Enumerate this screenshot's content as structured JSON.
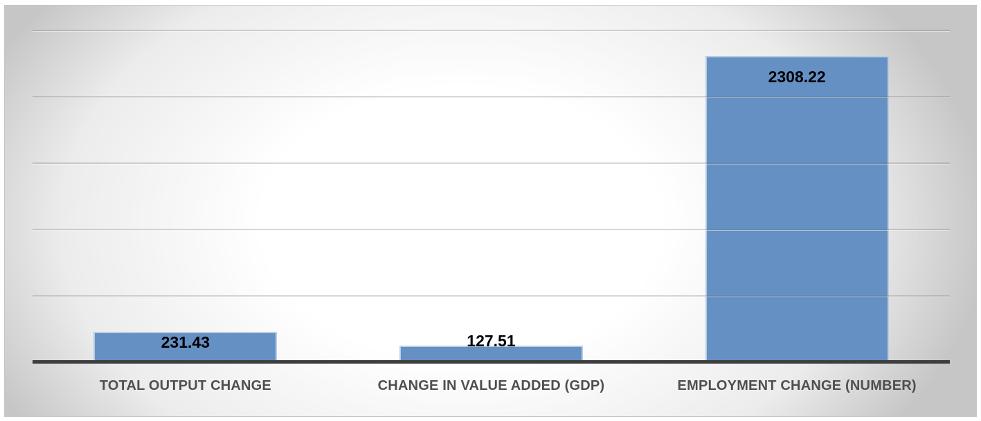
{
  "chart_data": {
    "type": "bar",
    "title": "",
    "xlabel": "",
    "ylabel": "",
    "categories": [
      "TOTAL OUTPUT CHANGE",
      "CHANGE IN VALUE ADDED (GDP)",
      "EMPLOYMENT CHANGE (NUMBER)"
    ],
    "values": [
      231.43,
      127.51,
      2308.22
    ],
    "data_labels": [
      "231.43",
      "127.51",
      "2308.22"
    ],
    "ylim": [
      0,
      2500
    ],
    "y_gridlines": [
      500,
      1000,
      1500,
      2000,
      2500
    ],
    "y_axis_tick_labels_visible": false,
    "grid": "horizontal",
    "legend_position": "none",
    "colors": {
      "bar_fill": "#6590C4",
      "bar_edge": "rgba(255,255,255,0.55)",
      "axis_line": "#3E3E3E",
      "gridline": "rgba(110,110,110,0.28)",
      "value_label": "#000000",
      "category_label": "#4F4F4F",
      "background_center": "#FFFFFF",
      "background_corner": "#C6C6C6",
      "frame_border": "#C6C6C6"
    }
  }
}
